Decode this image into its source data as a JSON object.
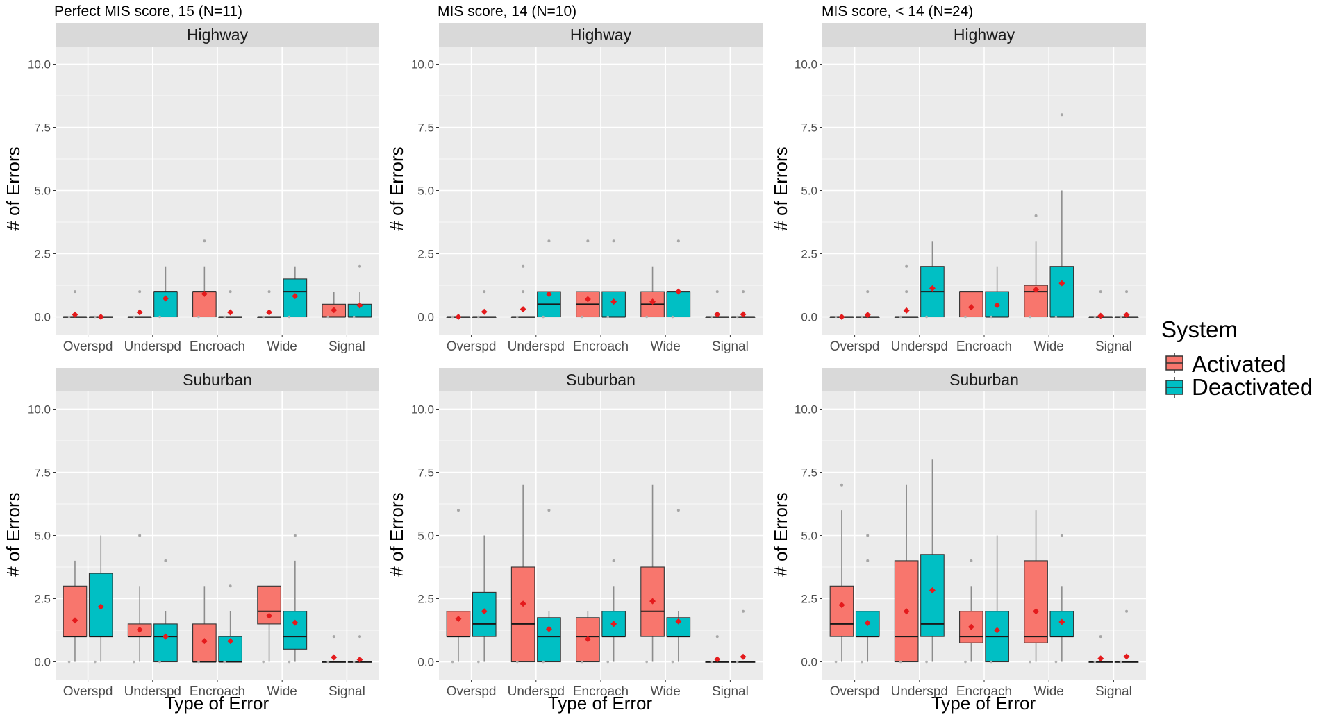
{
  "figure": {
    "ylabel": "# of Errors",
    "xlabel": "Type of Error",
    "legend": {
      "title": "System",
      "items": [
        {
          "label": "Activated",
          "color": "#F8766D"
        },
        {
          "label": "Deactivated",
          "color": "#00BFC4"
        }
      ]
    },
    "group_titles": [
      "Perfect MIS score, 15 (N=11)",
      "MIS score, 14 (N=10)",
      "MIS score, < 14 (N=24)"
    ],
    "strip_labels": [
      "Highway",
      "Suburban"
    ]
  },
  "chart_data": {
    "type": "box",
    "categories": [
      "Overspd",
      "Underspd",
      "Encroach",
      "Wide",
      "Signal"
    ],
    "y_ticks": [
      "0.0",
      "2.5",
      "5.0",
      "7.5",
      "10.0"
    ],
    "ylim": [
      0,
      10
    ],
    "panels": [
      {
        "group": "Perfect MIS score, 15 (N=11)",
        "facet": "Highway",
        "series": [
          {
            "name": "Activated",
            "boxes": [
              {
                "lower": 0,
                "q1": 0,
                "median": 0,
                "q3": 0,
                "upper": 0,
                "mean": 0.09,
                "points": [
                  1
                ]
              },
              {
                "lower": 0,
                "q1": 0,
                "median": 0,
                "q3": 0,
                "upper": 0,
                "mean": 0.18,
                "points": [
                  1
                ]
              },
              {
                "lower": 0,
                "q1": 0,
                "median": 1,
                "q3": 1,
                "upper": 2,
                "mean": 0.91,
                "points": [
                  3
                ]
              },
              {
                "lower": 0,
                "q1": 0,
                "median": 0,
                "q3": 0,
                "upper": 0,
                "mean": 0.18,
                "points": [
                  1
                ]
              },
              {
                "lower": 0,
                "q1": 0,
                "median": 0,
                "q3": 0.5,
                "upper": 1,
                "mean": 0.27,
                "points": []
              }
            ]
          },
          {
            "name": "Deactivated",
            "boxes": [
              {
                "lower": 0,
                "q1": 0,
                "median": 0,
                "q3": 0,
                "upper": 0,
                "mean": 0.0,
                "points": []
              },
              {
                "lower": 0,
                "q1": 0,
                "median": 1,
                "q3": 1,
                "upper": 2,
                "mean": 0.73,
                "points": []
              },
              {
                "lower": 0,
                "q1": 0,
                "median": 0,
                "q3": 0,
                "upper": 0,
                "mean": 0.18,
                "points": [
                  1
                ]
              },
              {
                "lower": 0,
                "q1": 0,
                "median": 1,
                "q3": 1.5,
                "upper": 2,
                "mean": 0.82,
                "points": []
              },
              {
                "lower": 0,
                "q1": 0,
                "median": 0,
                "q3": 0.5,
                "upper": 1,
                "mean": 0.45,
                "points": [
                  2
                ]
              }
            ]
          }
        ]
      },
      {
        "group": "MIS score, 14 (N=10)",
        "facet": "Highway",
        "series": [
          {
            "name": "Activated",
            "boxes": [
              {
                "lower": 0,
                "q1": 0,
                "median": 0,
                "q3": 0,
                "upper": 0,
                "mean": 0.0,
                "points": []
              },
              {
                "lower": 0,
                "q1": 0,
                "median": 0,
                "q3": 0,
                "upper": 0,
                "mean": 0.3,
                "points": [
                  1,
                  2
                ]
              },
              {
                "lower": 0,
                "q1": 0,
                "median": 0.5,
                "q3": 1,
                "upper": 1,
                "mean": 0.7,
                "points": [
                  3
                ]
              },
              {
                "lower": 0,
                "q1": 0,
                "median": 0.5,
                "q3": 1,
                "upper": 2,
                "mean": 0.6,
                "points": []
              },
              {
                "lower": 0,
                "q1": 0,
                "median": 0,
                "q3": 0,
                "upper": 0,
                "mean": 0.1,
                "points": [
                  1
                ]
              }
            ]
          },
          {
            "name": "Deactivated",
            "boxes": [
              {
                "lower": 0,
                "q1": 0,
                "median": 0,
                "q3": 0,
                "upper": 0,
                "mean": 0.2,
                "points": [
                  1
                ]
              },
              {
                "lower": 0,
                "q1": 0,
                "median": 0.5,
                "q3": 1,
                "upper": 1,
                "mean": 0.9,
                "points": [
                  3
                ]
              },
              {
                "lower": 0,
                "q1": 0,
                "median": 0,
                "q3": 1,
                "upper": 1,
                "mean": 0.6,
                "points": [
                  3
                ]
              },
              {
                "lower": 0,
                "q1": 0,
                "median": 1,
                "q3": 1,
                "upper": 1,
                "mean": 1.0,
                "points": [
                  3
                ]
              },
              {
                "lower": 0,
                "q1": 0,
                "median": 0,
                "q3": 0,
                "upper": 0,
                "mean": 0.1,
                "points": [
                  1
                ]
              }
            ]
          }
        ]
      },
      {
        "group": "MIS score, < 14 (N=24)",
        "facet": "Highway",
        "series": [
          {
            "name": "Activated",
            "boxes": [
              {
                "lower": 0,
                "q1": 0,
                "median": 0,
                "q3": 0,
                "upper": 0,
                "mean": 0.0,
                "points": []
              },
              {
                "lower": 0,
                "q1": 0,
                "median": 0,
                "q3": 0,
                "upper": 0,
                "mean": 0.25,
                "points": [
                  1,
                  2
                ]
              },
              {
                "lower": 0,
                "q1": 0,
                "median": 1,
                "q3": 1,
                "upper": 1,
                "mean": 0.38,
                "points": []
              },
              {
                "lower": 0,
                "q1": 0,
                "median": 1,
                "q3": 1.25,
                "upper": 3,
                "mean": 1.08,
                "points": [
                  4
                ]
              },
              {
                "lower": 0,
                "q1": 0,
                "median": 0,
                "q3": 0,
                "upper": 0,
                "mean": 0.04,
                "points": [
                  1
                ]
              }
            ]
          },
          {
            "name": "Deactivated",
            "boxes": [
              {
                "lower": 0,
                "q1": 0,
                "median": 0,
                "q3": 0,
                "upper": 0,
                "mean": 0.08,
                "points": [
                  1
                ]
              },
              {
                "lower": 0,
                "q1": 0,
                "median": 1,
                "q3": 2,
                "upper": 3,
                "mean": 1.13,
                "points": []
              },
              {
                "lower": 0,
                "q1": 0,
                "median": 0,
                "q3": 1,
                "upper": 2,
                "mean": 0.46,
                "points": []
              },
              {
                "lower": 0,
                "q1": 0,
                "median": 0,
                "q3": 2,
                "upper": 5,
                "mean": 1.33,
                "points": [
                  8
                ]
              },
              {
                "lower": 0,
                "q1": 0,
                "median": 0,
                "q3": 0,
                "upper": 0,
                "mean": 0.08,
                "points": [
                  1
                ]
              }
            ]
          }
        ]
      },
      {
        "group": "Perfect MIS score, 15 (N=11)",
        "facet": "Suburban",
        "series": [
          {
            "name": "Activated",
            "boxes": [
              {
                "lower": 0,
                "q1": 1,
                "median": 1,
                "q3": 3,
                "upper": 4,
                "mean": 1.64,
                "points": []
              },
              {
                "lower": 0,
                "q1": 1,
                "median": 1,
                "q3": 1.5,
                "upper": 3,
                "mean": 1.27,
                "points": [
                  5
                ]
              },
              {
                "lower": 0,
                "q1": 0,
                "median": 0,
                "q3": 1.5,
                "upper": 3,
                "mean": 0.82,
                "points": []
              },
              {
                "lower": 0,
                "q1": 1.5,
                "median": 2,
                "q3": 3,
                "upper": 3,
                "mean": 1.82,
                "points": []
              },
              {
                "lower": 0,
                "q1": 0,
                "median": 0,
                "q3": 0,
                "upper": 0,
                "mean": 0.18,
                "points": [
                  1
                ]
              }
            ]
          },
          {
            "name": "Deactivated",
            "boxes": [
              {
                "lower": 0,
                "q1": 1,
                "median": 1,
                "q3": 3.5,
                "upper": 5,
                "mean": 2.18,
                "points": []
              },
              {
                "lower": 0,
                "q1": 0,
                "median": 1,
                "q3": 1.5,
                "upper": 2,
                "mean": 1.0,
                "points": [
                  4
                ]
              },
              {
                "lower": 0,
                "q1": 0,
                "median": 0,
                "q3": 1,
                "upper": 2,
                "mean": 0.82,
                "points": [
                  3
                ]
              },
              {
                "lower": 0,
                "q1": 0.5,
                "median": 1,
                "q3": 2,
                "upper": 4,
                "mean": 1.55,
                "points": [
                  5
                ]
              },
              {
                "lower": 0,
                "q1": 0,
                "median": 0,
                "q3": 0,
                "upper": 0,
                "mean": 0.09,
                "points": [
                  1
                ]
              }
            ]
          }
        ]
      },
      {
        "group": "MIS score, 14 (N=10)",
        "facet": "Suburban",
        "series": [
          {
            "name": "Activated",
            "boxes": [
              {
                "lower": 0,
                "q1": 1,
                "median": 1,
                "q3": 2,
                "upper": 2,
                "mean": 1.7,
                "points": [
                  6
                ]
              },
              {
                "lower": 0,
                "q1": 0,
                "median": 1.5,
                "q3": 3.75,
                "upper": 7,
                "mean": 2.3,
                "points": []
              },
              {
                "lower": 0,
                "q1": 0,
                "median": 1,
                "q3": 1.75,
                "upper": 2,
                "mean": 0.9,
                "points": []
              },
              {
                "lower": 0,
                "q1": 1,
                "median": 2,
                "q3": 3.75,
                "upper": 7,
                "mean": 2.4,
                "points": []
              },
              {
                "lower": 0,
                "q1": 0,
                "median": 0,
                "q3": 0,
                "upper": 0,
                "mean": 0.1,
                "points": [
                  1
                ]
              }
            ]
          },
          {
            "name": "Deactivated",
            "boxes": [
              {
                "lower": 0,
                "q1": 1,
                "median": 1.5,
                "q3": 2.75,
                "upper": 5,
                "mean": 2.0,
                "points": []
              },
              {
                "lower": 0,
                "q1": 0,
                "median": 1,
                "q3": 1.75,
                "upper": 2,
                "mean": 1.3,
                "points": [
                  6
                ]
              },
              {
                "lower": 0,
                "q1": 1,
                "median": 1,
                "q3": 2,
                "upper": 3,
                "mean": 1.5,
                "points": [
                  4
                ]
              },
              {
                "lower": 0,
                "q1": 1,
                "median": 1,
                "q3": 1.75,
                "upper": 2,
                "mean": 1.6,
                "points": [
                  6
                ]
              },
              {
                "lower": 0,
                "q1": 0,
                "median": 0,
                "q3": 0,
                "upper": 0,
                "mean": 0.2,
                "points": [
                  2
                ]
              }
            ]
          }
        ]
      },
      {
        "group": "MIS score, < 14 (N=24)",
        "facet": "Suburban",
        "series": [
          {
            "name": "Activated",
            "boxes": [
              {
                "lower": 0,
                "q1": 1,
                "median": 1.5,
                "q3": 3,
                "upper": 6,
                "mean": 2.25,
                "points": [
                  7
                ]
              },
              {
                "lower": 0,
                "q1": 0,
                "median": 1,
                "q3": 4,
                "upper": 7,
                "mean": 2.0,
                "points": []
              },
              {
                "lower": 0,
                "q1": 0.75,
                "median": 1,
                "q3": 2,
                "upper": 3,
                "mean": 1.38,
                "points": [
                  4
                ]
              },
              {
                "lower": 0,
                "q1": 0.75,
                "median": 1,
                "q3": 4,
                "upper": 6,
                "mean": 2.0,
                "points": []
              },
              {
                "lower": 0,
                "q1": 0,
                "median": 0,
                "q3": 0,
                "upper": 0,
                "mean": 0.13,
                "points": [
                  1
                ]
              }
            ]
          },
          {
            "name": "Deactivated",
            "boxes": [
              {
                "lower": 0,
                "q1": 1,
                "median": 1,
                "q3": 2,
                "upper": 2,
                "mean": 1.54,
                "points": [
                  4,
                  5
                ]
              },
              {
                "lower": 0,
                "q1": 1,
                "median": 1.5,
                "q3": 4.25,
                "upper": 8,
                "mean": 2.83,
                "points": []
              },
              {
                "lower": 0,
                "q1": 0,
                "median": 1,
                "q3": 2,
                "upper": 5,
                "mean": 1.25,
                "points": []
              },
              {
                "lower": 0,
                "q1": 1,
                "median": 1,
                "q3": 2,
                "upper": 3,
                "mean": 1.58,
                "points": [
                  5
                ]
              },
              {
                "lower": 0,
                "q1": 0,
                "median": 0,
                "q3": 0,
                "upper": 0,
                "mean": 0.21,
                "points": [
                  2
                ]
              }
            ]
          }
        ]
      }
    ]
  }
}
